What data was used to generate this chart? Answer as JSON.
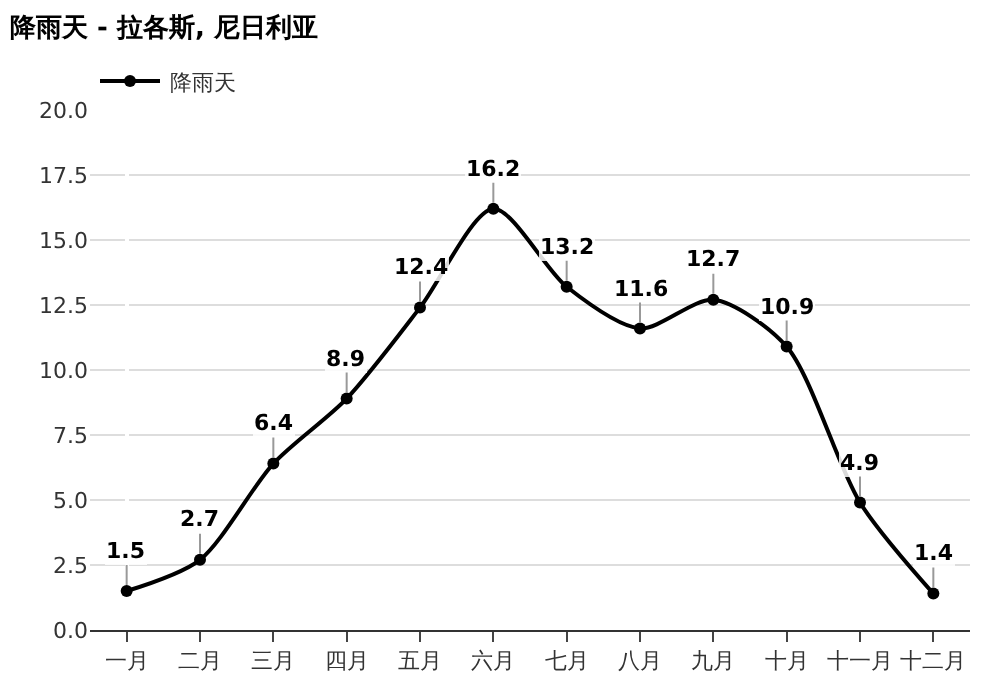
{
  "chart_data": {
    "type": "line",
    "title": "降雨天 - 拉各斯, 尼日利亚",
    "categories": [
      "一月",
      "二月",
      "三月",
      "四月",
      "五月",
      "六月",
      "七月",
      "八月",
      "九月",
      "十月",
      "十一月",
      "十二月"
    ],
    "series": [
      {
        "name": "降雨天",
        "color": "#000000",
        "values": [
          1.5,
          2.7,
          6.4,
          8.9,
          12.4,
          16.2,
          13.2,
          11.6,
          12.7,
          10.9,
          4.9,
          1.4
        ]
      }
    ],
    "ylim": [
      0,
      20
    ],
    "yticks": [
      {
        "value": 0,
        "label": "0.0"
      },
      {
        "value": 2.5,
        "label": "2.5"
      },
      {
        "value": 5,
        "label": "5.0"
      },
      {
        "value": 7.5,
        "label": "7.5"
      },
      {
        "value": 10,
        "label": "10.0"
      },
      {
        "value": 12.5,
        "label": "12.5"
      },
      {
        "value": 15,
        "label": "15.0"
      },
      {
        "value": 17.5,
        "label": "17.5"
      },
      {
        "value": 20,
        "label": "20.0"
      }
    ],
    "grid": "y",
    "legend": "top left",
    "marker": "circle",
    "line_style": "solid",
    "data_labels": true
  }
}
